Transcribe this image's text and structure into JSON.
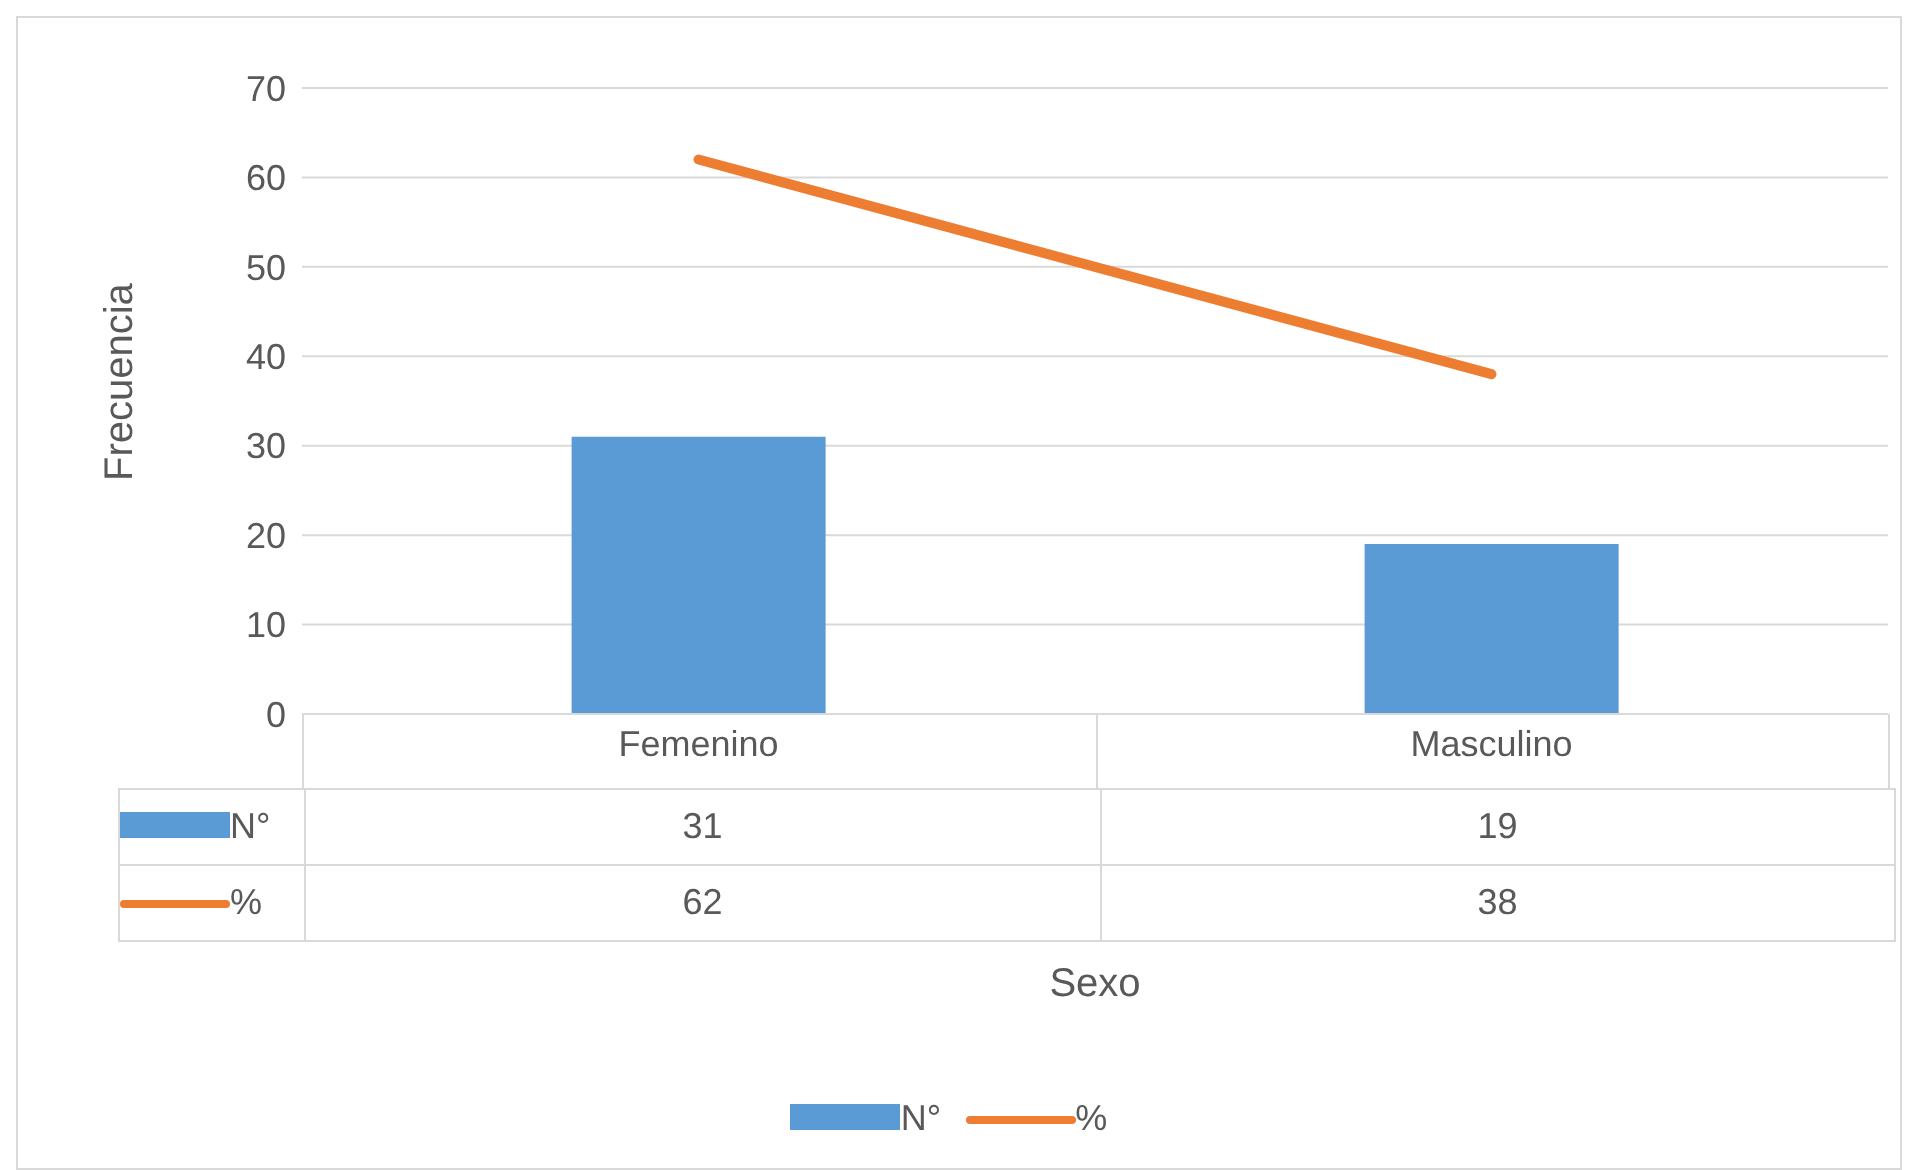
{
  "chart_data": {
    "type": "bar",
    "xlabel": "Sexo",
    "ylabel": "Frecuencia",
    "categories": [
      "Femenino",
      "Masculino"
    ],
    "series": [
      {
        "name": "N°",
        "color": "#5b9bd5",
        "values": [
          31,
          19
        ]
      },
      {
        "name": "%",
        "type": "line",
        "color": "#ed7d31",
        "values": [
          62,
          38
        ]
      }
    ],
    "ylim": [
      0,
      70
    ],
    "yticks": [
      0,
      10,
      20,
      30,
      40,
      50,
      60,
      70
    ],
    "grid": "y",
    "legend": "bottom",
    "data_labels": true,
    "marker": "none",
    "line_style": "solid"
  }
}
